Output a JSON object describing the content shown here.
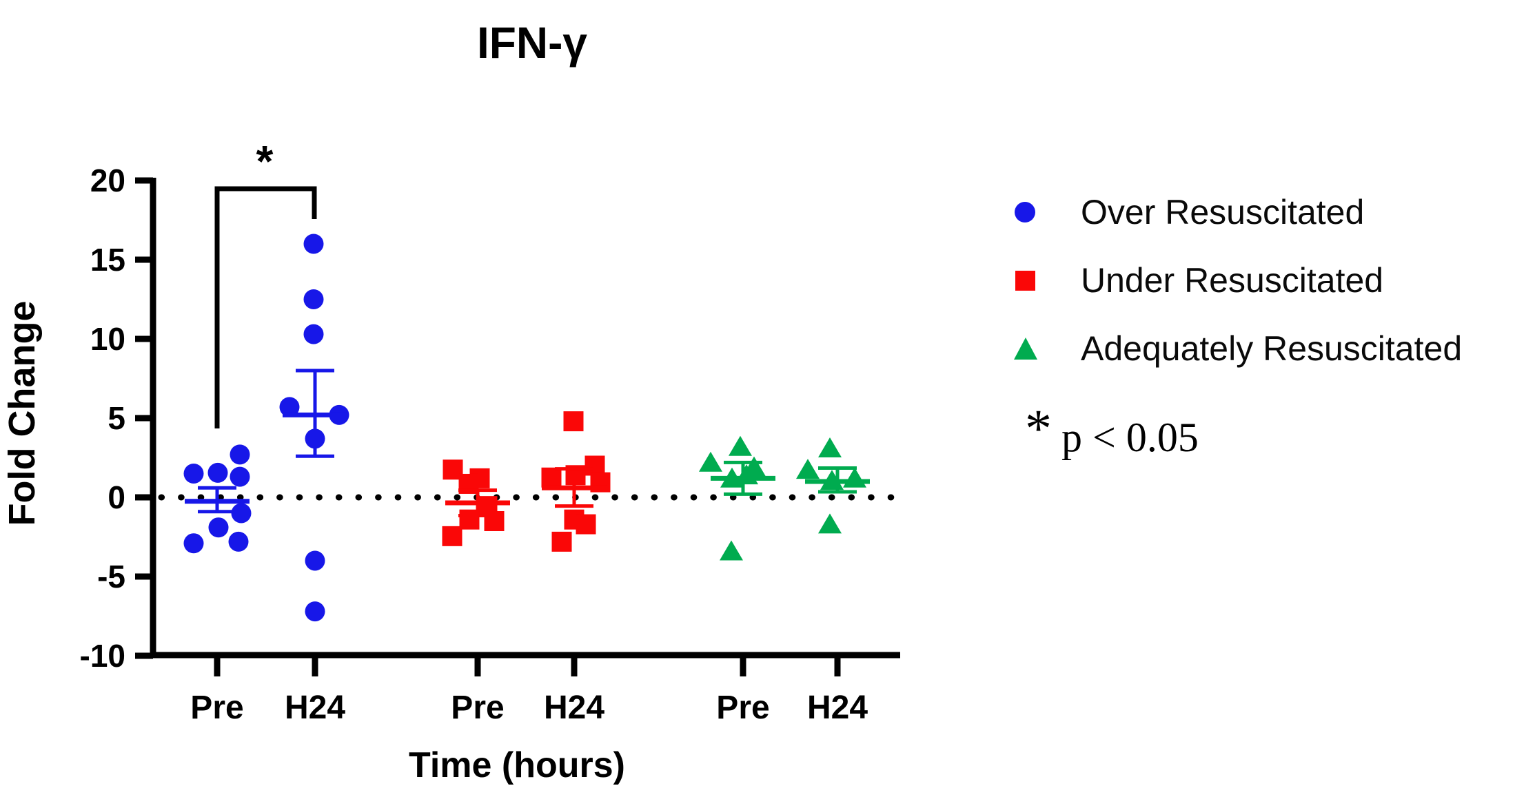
{
  "chart_data": {
    "type": "scatter",
    "title": "IFN-γ",
    "xlabel": "Time (hours)",
    "ylabel": "Fold Change",
    "ylim": [
      -10,
      20
    ],
    "yticks": [
      20,
      15,
      10,
      5,
      0,
      -5,
      -10
    ],
    "x_group_labels": [
      "Pre",
      "H24",
      "Pre",
      "H24",
      "Pre",
      "H24"
    ],
    "reference_line_y": 0,
    "grid": false,
    "legend_position": "right",
    "error_bar_type": "mean ± SEM",
    "significance": {
      "bracket_label": "*",
      "compares": [
        "Over Resuscitated Pre",
        "Over Resuscitated H24"
      ],
      "note_symbol": "*",
      "note_text": "p < 0.05"
    },
    "series": [
      {
        "name": "Over Resuscitated",
        "marker": "circle",
        "color": "#1717e8",
        "groups": [
          {
            "time": "Pre",
            "values": [
              2.7,
              1.55,
              1.5,
              1.3,
              -1.0,
              -1.9,
              -2.8,
              -2.9
            ],
            "jitter": [
              33,
              1,
              -34,
              33,
              35,
              2,
              31,
              -34
            ],
            "mean": -0.25,
            "sem_top": 0.6,
            "sem_bottom": -0.9
          },
          {
            "time": "H24",
            "values": [
              16.0,
              12.5,
              10.3,
              5.7,
              5.2,
              3.7,
              -4.0,
              -7.2
            ],
            "jitter": [
              -2,
              -2,
              -2,
              -37,
              35,
              0,
              0,
              0
            ],
            "mean": 5.2,
            "sem_top": 8.0,
            "sem_bottom": 2.6
          }
        ]
      },
      {
        "name": "Under Resuscitated",
        "marker": "square",
        "color": "#fa0707",
        "groups": [
          {
            "time": "Pre",
            "values": [
              1.75,
              1.2,
              0.85,
              -0.55,
              -1.4,
              -1.5,
              -2.45
            ],
            "jitter": [
              -36,
              3,
              -13,
              14,
              -12,
              24,
              -37
            ],
            "mean": -0.35,
            "sem_top": 0.45,
            "sem_bottom": -1.15
          },
          {
            "time": "H24",
            "values": [
              4.8,
              2.0,
              1.4,
              1.25,
              0.95,
              -1.4,
              -1.7,
              -2.8
            ],
            "jitter": [
              -1,
              30,
              2,
              -33,
              38,
              0,
              17,
              -18
            ],
            "mean": 0.6,
            "sem_top": 1.8,
            "sem_bottom": -0.55
          }
        ]
      },
      {
        "name": "Adequately Resuscitated",
        "marker": "triangle",
        "color": "#00ab4f",
        "groups": [
          {
            "time": "Pre",
            "values": [
              3.1,
              2.1,
              1.8,
              1.3,
              1.1,
              -3.5
            ],
            "jitter": [
              -4,
              -47,
              16,
              5,
              -16,
              -17
            ],
            "mean": 1.2,
            "sem_top": 2.2,
            "sem_bottom": 0.2
          },
          {
            "time": "H24",
            "values": [
              3.0,
              1.65,
              1.1,
              0.95,
              -1.8
            ],
            "jitter": [
              -11,
              -43,
              25,
              -8,
              -11
            ],
            "mean": 1.0,
            "sem_top": 1.85,
            "sem_bottom": 0.35
          }
        ]
      }
    ]
  }
}
